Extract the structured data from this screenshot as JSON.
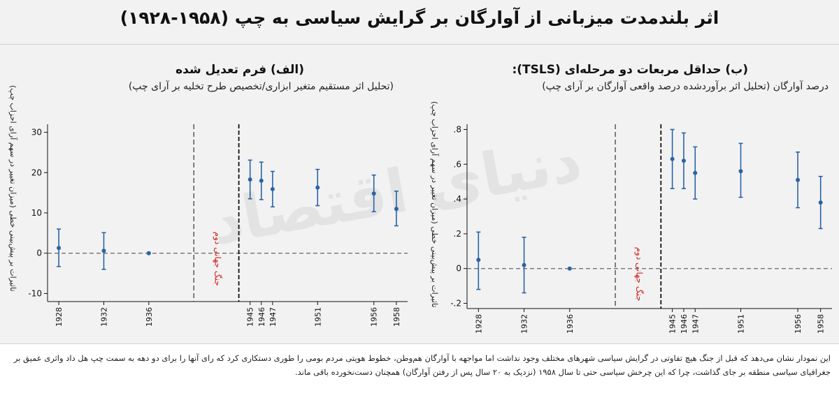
{
  "title": "اثر بلندمدت میزبانی از آوارگان بر گرایش سیاسی به چپ (۱۹۵۸-۱۹۲۸)",
  "watermark": "دنیای اقتصاد",
  "caption": "این نمودار نشان می‌دهد که قبل از جنگ هیچ تفاوتی در گرایش سیاسی شهرهای مختلف وجود نداشت اما مواجهه با آوارگان هم‌وطن، خطوط هویتی مردم بومی را طوری دستکاری کرد که رای آنها را برای دو دهه به سمت چپ هل داد واثری عمیق بر جغرافیای سیاسی منطقه بر جای گذاشت، چرا که این چرخش سیاسی حتی تا سال ۱۹۵۸ (نزدیک به ۲۰ سال پس از رفتن آوارگان) همچنان دست‌نخورده باقی ماند.",
  "colors": {
    "series": "#2a63a6",
    "war_label": "#d21f1f",
    "axis": "#111111",
    "zero_line": "#666666"
  },
  "chart_data": [
    {
      "type": "scatter",
      "panel_title": "(الف) فرم تعدیل شده",
      "panel_subtitle": "(تحلیل اثر مستقیم متغیر ابزاری/تخصیص طرح تخلیه بر آرای چپ)",
      "ylabel": "تاثیرات بر پیش‌بینی خطی (میزان تغییر در سهم آرای احزاب چپ)",
      "xlim": [
        1927,
        1959
      ],
      "ylim": [
        -12,
        32
      ],
      "yticks": [
        -10,
        0,
        10,
        20,
        30
      ],
      "ytick_labels": [
        "-10",
        "0",
        "10",
        "20",
        "30"
      ],
      "xticks": [
        1928,
        1932,
        1936,
        1945,
        1946,
        1947,
        1951,
        1956,
        1958
      ],
      "xtick_labels": [
        "1928",
        "1932",
        "1936",
        "1945",
        "1946",
        "1947",
        "1951",
        "1956",
        "1958"
      ],
      "vlines": [
        1940,
        1944
      ],
      "war_label": "جنگ جهانی دوم",
      "grid": false,
      "points": [
        {
          "x": 1928,
          "y": 1.3,
          "low": -3.3,
          "high": 6.0
        },
        {
          "x": 1932,
          "y": 0.6,
          "low": -4.0,
          "high": 5.1
        },
        {
          "x": 1936,
          "y": 0.0,
          "low": 0.0,
          "high": 0.0
        },
        {
          "x": 1945,
          "y": 18.3,
          "low": 13.5,
          "high": 23.1
        },
        {
          "x": 1946,
          "y": 18.0,
          "low": 13.3,
          "high": 22.6
        },
        {
          "x": 1947,
          "y": 15.9,
          "low": 11.5,
          "high": 20.3
        },
        {
          "x": 1951,
          "y": 16.3,
          "low": 11.8,
          "high": 20.8
        },
        {
          "x": 1956,
          "y": 14.8,
          "low": 10.3,
          "high": 19.4
        },
        {
          "x": 1958,
          "y": 11.0,
          "low": 6.8,
          "high": 15.4
        }
      ]
    },
    {
      "type": "scatter",
      "panel_title": "(ب) حداقل مربعات دو مرحله‌ای (TSLS):",
      "panel_subtitle": "درصد آوارگان (تحلیل اثر برآوردشده درصد واقعی آوارگان بر آرای چپ)",
      "ylabel": "تاثیرات بر پیش‌بینی خطی (میزان تغییر در سهم آرای احزاب چپ)",
      "xlim": [
        1927,
        1959
      ],
      "ylim": [
        -0.23,
        0.83
      ],
      "yticks": [
        -0.2,
        0,
        0.2,
        0.4,
        0.6,
        0.8
      ],
      "ytick_labels": [
        "-.2",
        "0",
        ".2",
        ".4",
        ".6",
        ".8"
      ],
      "xticks": [
        1928,
        1932,
        1936,
        1945,
        1946,
        1947,
        1951,
        1956,
        1958
      ],
      "xtick_labels": [
        "1928",
        "1932",
        "1936",
        "1945",
        "1946",
        "1947",
        "1951",
        "1956",
        "1958"
      ],
      "vlines": [
        1940,
        1944
      ],
      "war_label": "جنگ جهانی دوم",
      "grid": false,
      "points": [
        {
          "x": 1928,
          "y": 0.05,
          "low": -0.12,
          "high": 0.21
        },
        {
          "x": 1932,
          "y": 0.02,
          "low": -0.14,
          "high": 0.18
        },
        {
          "x": 1936,
          "y": 0.0,
          "low": 0.0,
          "high": 0.0
        },
        {
          "x": 1945,
          "y": 0.63,
          "low": 0.46,
          "high": 0.8
        },
        {
          "x": 1946,
          "y": 0.62,
          "low": 0.46,
          "high": 0.78
        },
        {
          "x": 1947,
          "y": 0.55,
          "low": 0.4,
          "high": 0.7
        },
        {
          "x": 1951,
          "y": 0.56,
          "low": 0.41,
          "high": 0.72
        },
        {
          "x": 1956,
          "y": 0.51,
          "low": 0.35,
          "high": 0.67
        },
        {
          "x": 1958,
          "y": 0.38,
          "low": 0.23,
          "high": 0.53
        }
      ]
    }
  ]
}
